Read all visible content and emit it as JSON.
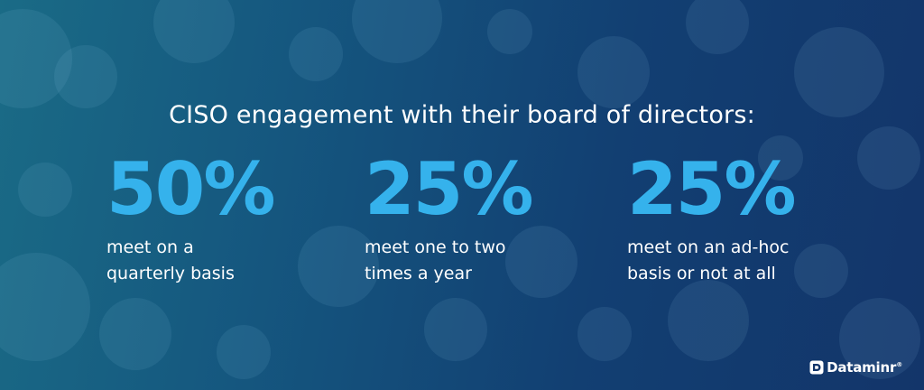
{
  "headline": "CISO engagement with their board of directors:",
  "stats": [
    {
      "value": "50%",
      "description": "meet on a\nquarterly basis"
    },
    {
      "value": "25%",
      "description": "meet one to two\ntimes a year"
    },
    {
      "value": "25%",
      "description": "meet on an ad-hoc\nbasis or not at all"
    }
  ],
  "brand": {
    "name": "Dataminr",
    "mark": "®"
  },
  "colors": {
    "accent": "#35b2ec",
    "background_start": "#1a6b86",
    "background_end": "#13356a",
    "text": "#ffffff"
  }
}
